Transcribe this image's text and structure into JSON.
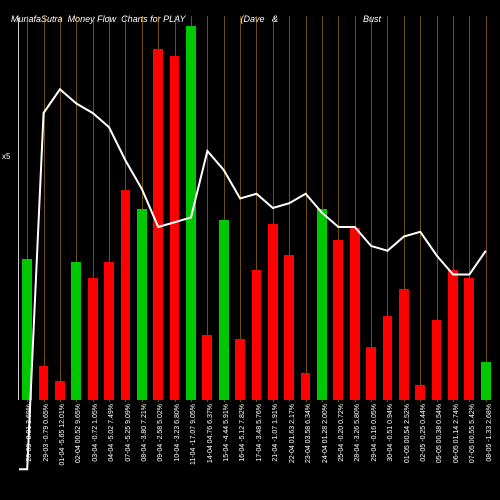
{
  "title_parts": [
    "MunafaSutra",
    "Money Flow",
    "Charts for PLAY",
    "(Dave",
    "&",
    "Bust"
  ],
  "chart": {
    "type": "bar+line",
    "background_color": "#000000",
    "grid_color": "#b8860b",
    "grid_opacity": 0.6,
    "line_color": "#ffffff",
    "line_width": 2,
    "bar_colors": {
      "up": "#00c800",
      "down": "#ff0000"
    },
    "y_max": 100,
    "y_tick": {
      "label": "x5",
      "pos": 65
    },
    "bars": [
      {
        "h": 37,
        "c": "up",
        "line": 5,
        "label": "28-03 -0.01 3.69%"
      },
      {
        "h": 9,
        "c": "down",
        "line": 80,
        "label": "29-03 -0.79 0.65%"
      },
      {
        "h": 5,
        "c": "down",
        "line": 85,
        "label": "01-04 -5.65 12.01%"
      },
      {
        "h": 36,
        "c": "up",
        "line": 82,
        "label": "02-04 00.52 9.65%"
      },
      {
        "h": 32,
        "c": "down",
        "line": 80,
        "label": "03-04 -0.72 1.05%"
      },
      {
        "h": 36,
        "c": "down",
        "line": 77,
        "label": "04-04 -5.02 7.49%"
      },
      {
        "h": 55,
        "c": "down",
        "line": 70,
        "label": "07-04 -5.25 9.09%"
      },
      {
        "h": 50,
        "c": "up",
        "line": 64,
        "label": "08-04 -3.80 7.21%"
      },
      {
        "h": 92,
        "c": "down",
        "line": 56,
        "label": "09-04 -2.58 5.02%"
      },
      {
        "h": 90,
        "c": "down",
        "line": 57,
        "label": "10-04 -3.23 6.80%"
      },
      {
        "h": 98,
        "c": "up",
        "line": 58,
        "label": "11-04 -17.07 9.05%"
      },
      {
        "h": 17,
        "c": "down",
        "line": 72,
        "label": "14-04 04.76 6.37%"
      },
      {
        "h": 47,
        "c": "up",
        "line": 68,
        "label": "15-04 -4.44 5.91%"
      },
      {
        "h": 16,
        "c": "down",
        "line": 62,
        "label": "16-04 -5.12 7.82%"
      },
      {
        "h": 34,
        "c": "down",
        "line": 63,
        "label": "17-04 -3.48 5.76%"
      },
      {
        "h": 46,
        "c": "down",
        "line": 60,
        "label": "21-04 -1.07 1.91%"
      },
      {
        "h": 38,
        "c": "down",
        "line": 61,
        "label": "22-04 01.63 2.17%"
      },
      {
        "h": 7,
        "c": "down",
        "line": 63,
        "label": "23-04 03.58 6.34%"
      },
      {
        "h": 50,
        "c": "up",
        "line": 59,
        "label": "24-04 01.28 2.00%"
      },
      {
        "h": 42,
        "c": "down",
        "line": 56,
        "label": "25-04 -0.20 0.72%"
      },
      {
        "h": 45,
        "c": "down",
        "line": 56,
        "label": "28-04 -3.26 5.80%"
      },
      {
        "h": 14,
        "c": "down",
        "line": 52,
        "label": "29-04 -0.16 0.05%"
      },
      {
        "h": 22,
        "c": "down",
        "line": 51,
        "label": "30-04 -0.51 0.94%"
      },
      {
        "h": 29,
        "c": "down",
        "line": 54,
        "label": "01-05 00.54 2.52%"
      },
      {
        "h": 4,
        "c": "down",
        "line": 55,
        "label": "02-05 -0.25 0.44%"
      },
      {
        "h": 21,
        "c": "down",
        "line": 50,
        "label": "05-05 00.38 0.54%"
      },
      {
        "h": 34,
        "c": "down",
        "line": 46,
        "label": "06-05 01.14 2.74%"
      },
      {
        "h": 32,
        "c": "down",
        "line": 46,
        "label": "07-05 00.55 5.42%"
      },
      {
        "h": 10,
        "c": "up",
        "line": 51,
        "label": "08-05 -1.33 2.68%"
      }
    ]
  }
}
